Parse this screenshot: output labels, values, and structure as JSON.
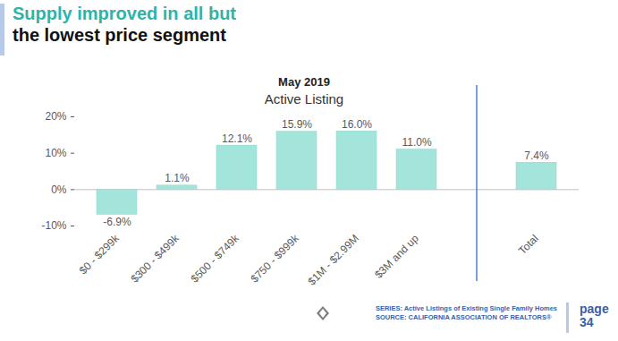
{
  "heading": {
    "line1": "Supply improved in all but",
    "line2": "the lowest price segment"
  },
  "chart_data": {
    "type": "bar",
    "title": "May 2019",
    "subtitle": "Active Listing",
    "categories": [
      "$0 - $299k",
      "$300 - $499k",
      "$500 - $749k",
      "$750 - $999k",
      "$1M - $2.99M",
      "$3M and up",
      null,
      "Total"
    ],
    "values": [
      -6.9,
      1.1,
      12.1,
      15.9,
      16.0,
      11.0,
      null,
      7.4
    ],
    "value_labels": [
      "-6.9%",
      "1.1%",
      "12.1%",
      "15.9%",
      "16.0%",
      "11.0%",
      null,
      "7.4%"
    ],
    "data_labels": true,
    "color": "#a3e5db",
    "ylim": [
      -10,
      20
    ],
    "yticks": [
      {
        "value": -10,
        "label": "-10%"
      },
      {
        "value": 0,
        "label": "0%"
      },
      {
        "value": 10,
        "label": "10%"
      },
      {
        "value": 20,
        "label": "20%"
      }
    ],
    "grid": false
  },
  "footer": {
    "series": "SERIES: Active Listings of Existing Single Family Homes",
    "source": "SOURCE: CALIFORNIA ASSOCIATION OF REALTORS®",
    "page": "page",
    "page_number": "34"
  }
}
